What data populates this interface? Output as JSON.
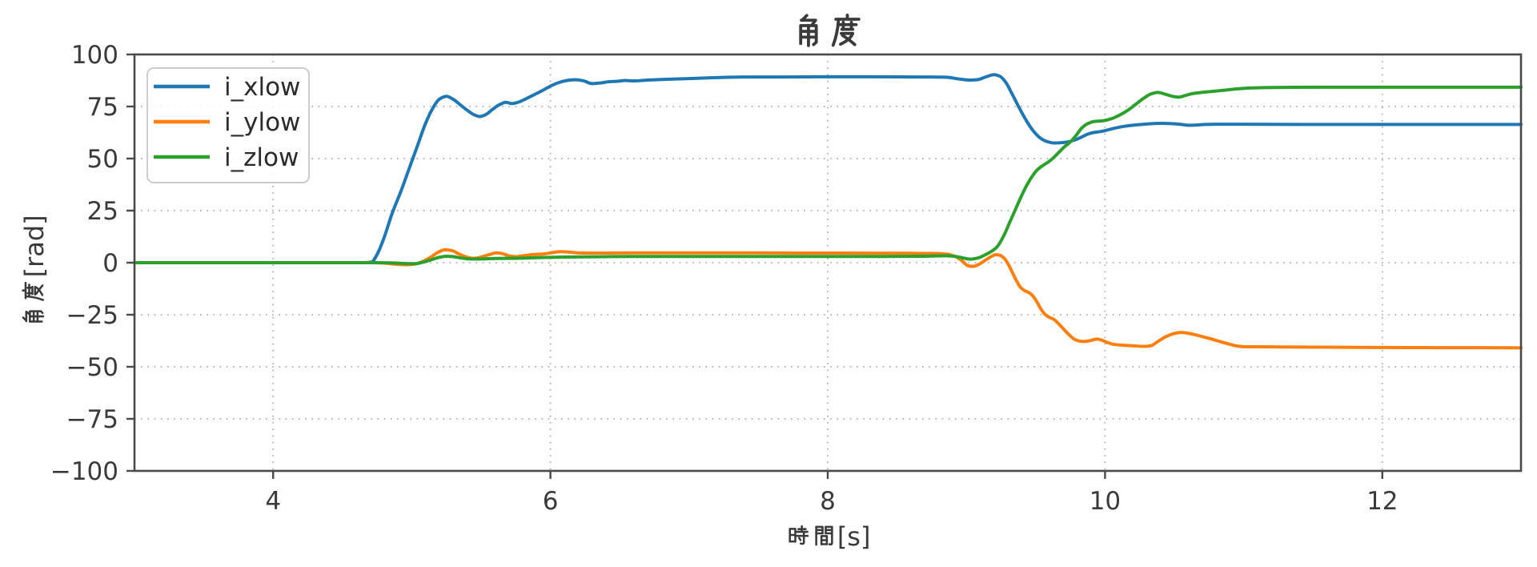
{
  "figure": {
    "background": "#ffffff",
    "text_color": "#3a3a3a"
  },
  "chart_data": {
    "type": "line",
    "title": "角度",
    "xlabel": "時間[s]",
    "ylabel": "角度[rad]",
    "xlim": [
      3,
      13
    ],
    "ylim": [
      -100,
      100
    ],
    "xticks": [
      4,
      6,
      8,
      10,
      12
    ],
    "yticks": [
      -100,
      -75,
      -50,
      -25,
      0,
      25,
      50,
      75,
      100
    ],
    "xtick_labels": [
      "4",
      "6",
      "8",
      "10",
      "12"
    ],
    "ytick_labels": [
      "−100",
      "−75",
      "−50",
      "−25",
      "0",
      "25",
      "50",
      "75",
      "100"
    ],
    "grid": true,
    "grid_style": "dotted",
    "grid_color": "#aaaaaa",
    "legend_position": "upper left",
    "legend_labels": [
      "i_xlow",
      "i_ylow",
      "i_zlow"
    ],
    "series": [
      {
        "name": "i_xlow",
        "color": "#1f77b4",
        "points": [
          [
            3.0,
            0
          ],
          [
            3.5,
            0
          ],
          [
            4.0,
            0
          ],
          [
            4.3,
            0
          ],
          [
            4.55,
            0
          ],
          [
            4.65,
            0
          ],
          [
            4.71,
            0.3
          ],
          [
            4.75,
            4
          ],
          [
            4.8,
            12
          ],
          [
            4.86,
            24
          ],
          [
            4.92,
            34
          ],
          [
            4.98,
            45
          ],
          [
            5.04,
            56
          ],
          [
            5.1,
            67
          ],
          [
            5.15,
            74
          ],
          [
            5.2,
            78.6
          ],
          [
            5.25,
            79.9
          ],
          [
            5.3,
            78.4
          ],
          [
            5.35,
            75.8
          ],
          [
            5.4,
            73.2
          ],
          [
            5.45,
            71
          ],
          [
            5.49,
            70.2
          ],
          [
            5.53,
            71
          ],
          [
            5.58,
            73.5
          ],
          [
            5.63,
            75.8
          ],
          [
            5.68,
            77
          ],
          [
            5.72,
            76.4
          ],
          [
            5.76,
            76.9
          ],
          [
            5.82,
            78.6
          ],
          [
            5.88,
            80.6
          ],
          [
            5.94,
            82.6
          ],
          [
            6.0,
            84.8
          ],
          [
            6.06,
            86.5
          ],
          [
            6.12,
            87.5
          ],
          [
            6.18,
            87.9
          ],
          [
            6.24,
            87.3
          ],
          [
            6.3,
            86
          ],
          [
            6.36,
            86.3
          ],
          [
            6.42,
            86.9
          ],
          [
            6.48,
            87.1
          ],
          [
            6.54,
            87.5
          ],
          [
            6.6,
            87.3
          ],
          [
            6.68,
            87.6
          ],
          [
            6.8,
            88
          ],
          [
            7.0,
            88.4
          ],
          [
            7.2,
            88.9
          ],
          [
            7.4,
            89.2
          ],
          [
            7.7,
            89.2
          ],
          [
            8.0,
            89.3
          ],
          [
            8.3,
            89.3
          ],
          [
            8.6,
            89.2
          ],
          [
            8.85,
            89.1
          ],
          [
            8.95,
            88.2
          ],
          [
            9.02,
            87.7
          ],
          [
            9.08,
            87.9
          ],
          [
            9.14,
            89.2
          ],
          [
            9.2,
            90.3
          ],
          [
            9.24,
            89.6
          ],
          [
            9.28,
            87
          ],
          [
            9.33,
            81
          ],
          [
            9.38,
            74.5
          ],
          [
            9.43,
            68.5
          ],
          [
            9.48,
            63.5
          ],
          [
            9.53,
            60
          ],
          [
            9.58,
            58.2
          ],
          [
            9.63,
            57.5
          ],
          [
            9.68,
            57.6
          ],
          [
            9.73,
            58
          ],
          [
            9.78,
            58.9
          ],
          [
            9.83,
            60.3
          ],
          [
            9.87,
            61.6
          ],
          [
            9.91,
            62.4
          ],
          [
            9.96,
            62.9
          ],
          [
            10.01,
            63.6
          ],
          [
            10.07,
            64.6
          ],
          [
            10.13,
            65.4
          ],
          [
            10.2,
            66
          ],
          [
            10.3,
            66.6
          ],
          [
            10.4,
            66.9
          ],
          [
            10.48,
            66.8
          ],
          [
            10.55,
            66.4
          ],
          [
            10.6,
            66
          ],
          [
            10.66,
            66.1
          ],
          [
            10.72,
            66.4
          ],
          [
            10.8,
            66.5
          ],
          [
            11.0,
            66.5
          ],
          [
            11.4,
            66.4
          ],
          [
            11.8,
            66.4
          ],
          [
            12.2,
            66.4
          ],
          [
            12.6,
            66.4
          ],
          [
            13.0,
            66.4
          ]
        ]
      },
      {
        "name": "i_ylow",
        "color": "#ff7f0e",
        "points": [
          [
            3.0,
            0
          ],
          [
            3.5,
            0
          ],
          [
            4.0,
            0
          ],
          [
            4.4,
            0
          ],
          [
            4.7,
            0
          ],
          [
            4.8,
            -0.2
          ],
          [
            4.88,
            -0.7
          ],
          [
            4.96,
            -1
          ],
          [
            5.02,
            -0.7
          ],
          [
            5.08,
            0.6
          ],
          [
            5.14,
            2.8
          ],
          [
            5.19,
            5
          ],
          [
            5.24,
            6.2
          ],
          [
            5.29,
            5.8
          ],
          [
            5.34,
            4.2
          ],
          [
            5.4,
            2.6
          ],
          [
            5.45,
            2.1
          ],
          [
            5.5,
            2.7
          ],
          [
            5.56,
            3.9
          ],
          [
            5.61,
            4.7
          ],
          [
            5.65,
            4.4
          ],
          [
            5.7,
            3.3
          ],
          [
            5.75,
            2.9
          ],
          [
            5.8,
            3.3
          ],
          [
            5.87,
            3.9
          ],
          [
            5.95,
            4.2
          ],
          [
            6.02,
            4.9
          ],
          [
            6.07,
            5.3
          ],
          [
            6.12,
            5.2
          ],
          [
            6.18,
            4.8
          ],
          [
            6.25,
            4.6
          ],
          [
            6.4,
            4.6
          ],
          [
            6.6,
            4.7
          ],
          [
            6.9,
            4.7
          ],
          [
            7.2,
            4.7
          ],
          [
            7.5,
            4.7
          ],
          [
            7.8,
            4.6
          ],
          [
            8.1,
            4.6
          ],
          [
            8.4,
            4.5
          ],
          [
            8.6,
            4.5
          ],
          [
            8.78,
            4.4
          ],
          [
            8.86,
            4.1
          ],
          [
            8.92,
            3
          ],
          [
            8.97,
            0.8
          ],
          [
            9.01,
            -1.4
          ],
          [
            9.05,
            -1.8
          ],
          [
            9.09,
            -0.8
          ],
          [
            9.13,
            0.9
          ],
          [
            9.17,
            2.6
          ],
          [
            9.21,
            3.8
          ],
          [
            9.24,
            3.6
          ],
          [
            9.27,
            2.3
          ],
          [
            9.3,
            -0.5
          ],
          [
            9.33,
            -4.5
          ],
          [
            9.36,
            -8.5
          ],
          [
            9.39,
            -11.8
          ],
          [
            9.42,
            -13.4
          ],
          [
            9.45,
            -14.3
          ],
          [
            9.48,
            -16
          ],
          [
            9.51,
            -19
          ],
          [
            9.54,
            -22.5
          ],
          [
            9.57,
            -25
          ],
          [
            9.6,
            -26.3
          ],
          [
            9.63,
            -27.2
          ],
          [
            9.66,
            -29
          ],
          [
            9.7,
            -31.8
          ],
          [
            9.74,
            -34.6
          ],
          [
            9.78,
            -36.8
          ],
          [
            9.82,
            -37.7
          ],
          [
            9.86,
            -37.8
          ],
          [
            9.9,
            -37.3
          ],
          [
            9.94,
            -36.7
          ],
          [
            9.98,
            -37.3
          ],
          [
            10.02,
            -38.4
          ],
          [
            10.06,
            -39.2
          ],
          [
            10.12,
            -39.6
          ],
          [
            10.2,
            -39.9
          ],
          [
            10.28,
            -40.2
          ],
          [
            10.33,
            -39.9
          ],
          [
            10.38,
            -37.9
          ],
          [
            10.44,
            -35.5
          ],
          [
            10.5,
            -34
          ],
          [
            10.55,
            -33.5
          ],
          [
            10.6,
            -33.9
          ],
          [
            10.66,
            -34.8
          ],
          [
            10.73,
            -36
          ],
          [
            10.81,
            -37.5
          ],
          [
            10.89,
            -39
          ],
          [
            10.96,
            -40.1
          ],
          [
            11.02,
            -40.4
          ],
          [
            11.1,
            -40.4
          ],
          [
            11.3,
            -40.5
          ],
          [
            11.6,
            -40.6
          ],
          [
            12.0,
            -40.7
          ],
          [
            12.4,
            -40.8
          ],
          [
            12.7,
            -40.8
          ],
          [
            13.0,
            -40.9
          ]
        ]
      },
      {
        "name": "i_zlow",
        "color": "#2ca02c",
        "points": [
          [
            3.0,
            0
          ],
          [
            3.5,
            0
          ],
          [
            4.0,
            0
          ],
          [
            4.4,
            0
          ],
          [
            4.75,
            0
          ],
          [
            4.85,
            -0.1
          ],
          [
            4.95,
            -0.4
          ],
          [
            5.02,
            -0.5
          ],
          [
            5.08,
            0.2
          ],
          [
            5.14,
            1.4
          ],
          [
            5.2,
            2.6
          ],
          [
            5.25,
            3.1
          ],
          [
            5.3,
            2.9
          ],
          [
            5.36,
            2.2
          ],
          [
            5.42,
            1.8
          ],
          [
            5.5,
            1.8
          ],
          [
            5.6,
            2.0
          ],
          [
            5.75,
            2.1
          ],
          [
            5.9,
            2.4
          ],
          [
            6.1,
            2.7
          ],
          [
            6.4,
            2.9
          ],
          [
            6.8,
            3.0
          ],
          [
            7.2,
            3.0
          ],
          [
            7.6,
            3.0
          ],
          [
            8.0,
            3.0
          ],
          [
            8.4,
            3.0
          ],
          [
            8.7,
            3.1
          ],
          [
            8.85,
            3.3
          ],
          [
            8.92,
            3.0
          ],
          [
            8.98,
            2.2
          ],
          [
            9.03,
            1.7
          ],
          [
            9.08,
            2.2
          ],
          [
            9.13,
            3.6
          ],
          [
            9.18,
            5.4
          ],
          [
            9.22,
            7.5
          ],
          [
            9.27,
            13
          ],
          [
            9.31,
            19
          ],
          [
            9.35,
            25
          ],
          [
            9.39,
            31
          ],
          [
            9.43,
            36.5
          ],
          [
            9.47,
            41
          ],
          [
            9.51,
            44.5
          ],
          [
            9.55,
            46.6
          ],
          [
            9.59,
            48.3
          ],
          [
            9.63,
            50.5
          ],
          [
            9.67,
            53.2
          ],
          [
            9.71,
            55.8
          ],
          [
            9.75,
            58
          ],
          [
            9.79,
            61
          ],
          [
            9.83,
            64.5
          ],
          [
            9.87,
            66.6
          ],
          [
            9.92,
            67.8
          ],
          [
            9.98,
            68.1
          ],
          [
            10.04,
            69
          ],
          [
            10.1,
            70.7
          ],
          [
            10.16,
            73
          ],
          [
            10.22,
            76
          ],
          [
            10.28,
            79
          ],
          [
            10.33,
            81
          ],
          [
            10.38,
            81.8
          ],
          [
            10.43,
            81
          ],
          [
            10.48,
            80
          ],
          [
            10.53,
            79.5
          ],
          [
            10.58,
            80.3
          ],
          [
            10.63,
            81.2
          ],
          [
            10.7,
            81.8
          ],
          [
            10.78,
            82.3
          ],
          [
            10.87,
            82.9
          ],
          [
            10.96,
            83.5
          ],
          [
            11.05,
            83.9
          ],
          [
            11.15,
            84.1
          ],
          [
            11.3,
            84.2
          ],
          [
            11.6,
            84.3
          ],
          [
            12.0,
            84.3
          ],
          [
            12.4,
            84.3
          ],
          [
            12.7,
            84.3
          ],
          [
            13.0,
            84.3
          ]
        ]
      }
    ]
  }
}
